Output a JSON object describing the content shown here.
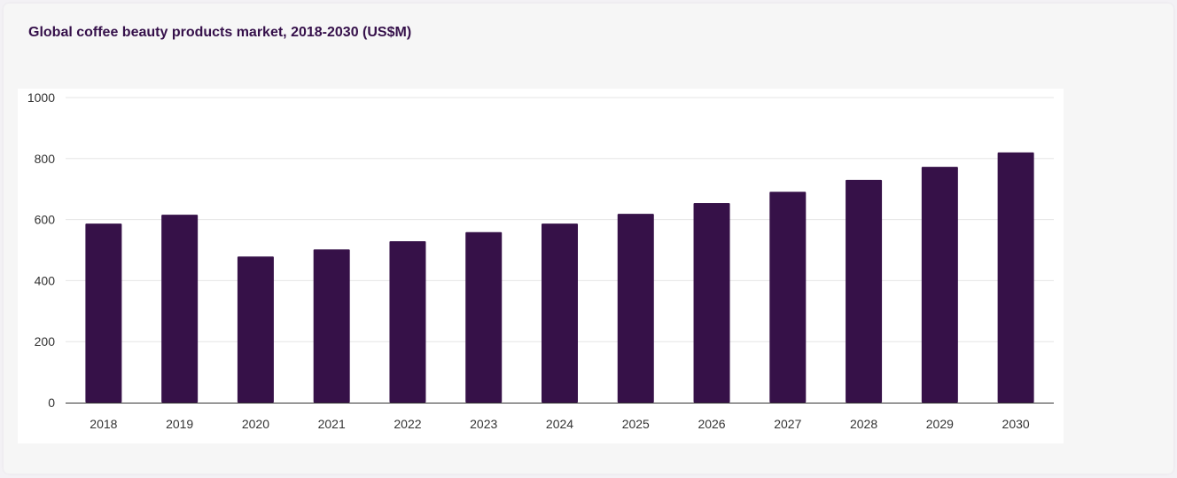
{
  "title": "Global coffee beauty products market, 2018-2030 (US$M)",
  "colors": {
    "bar": "#361148",
    "title": "#35104a",
    "grid": "#e6e6e6",
    "axis": "#333333"
  },
  "chart_data": {
    "type": "bar",
    "title": "Global coffee beauty products market, 2018-2030 (US$M)",
    "xlabel": "",
    "ylabel": "",
    "categories": [
      "2018",
      "2019",
      "2020",
      "2021",
      "2022",
      "2023",
      "2024",
      "2025",
      "2026",
      "2027",
      "2028",
      "2029",
      "2030"
    ],
    "values": [
      587,
      616,
      479,
      502,
      529,
      559,
      587,
      619,
      654,
      691,
      730,
      773,
      820
    ],
    "ylim": [
      0,
      1000
    ],
    "yticks": [
      0,
      200,
      400,
      600,
      800,
      1000
    ],
    "grid": true,
    "legend": "none"
  }
}
